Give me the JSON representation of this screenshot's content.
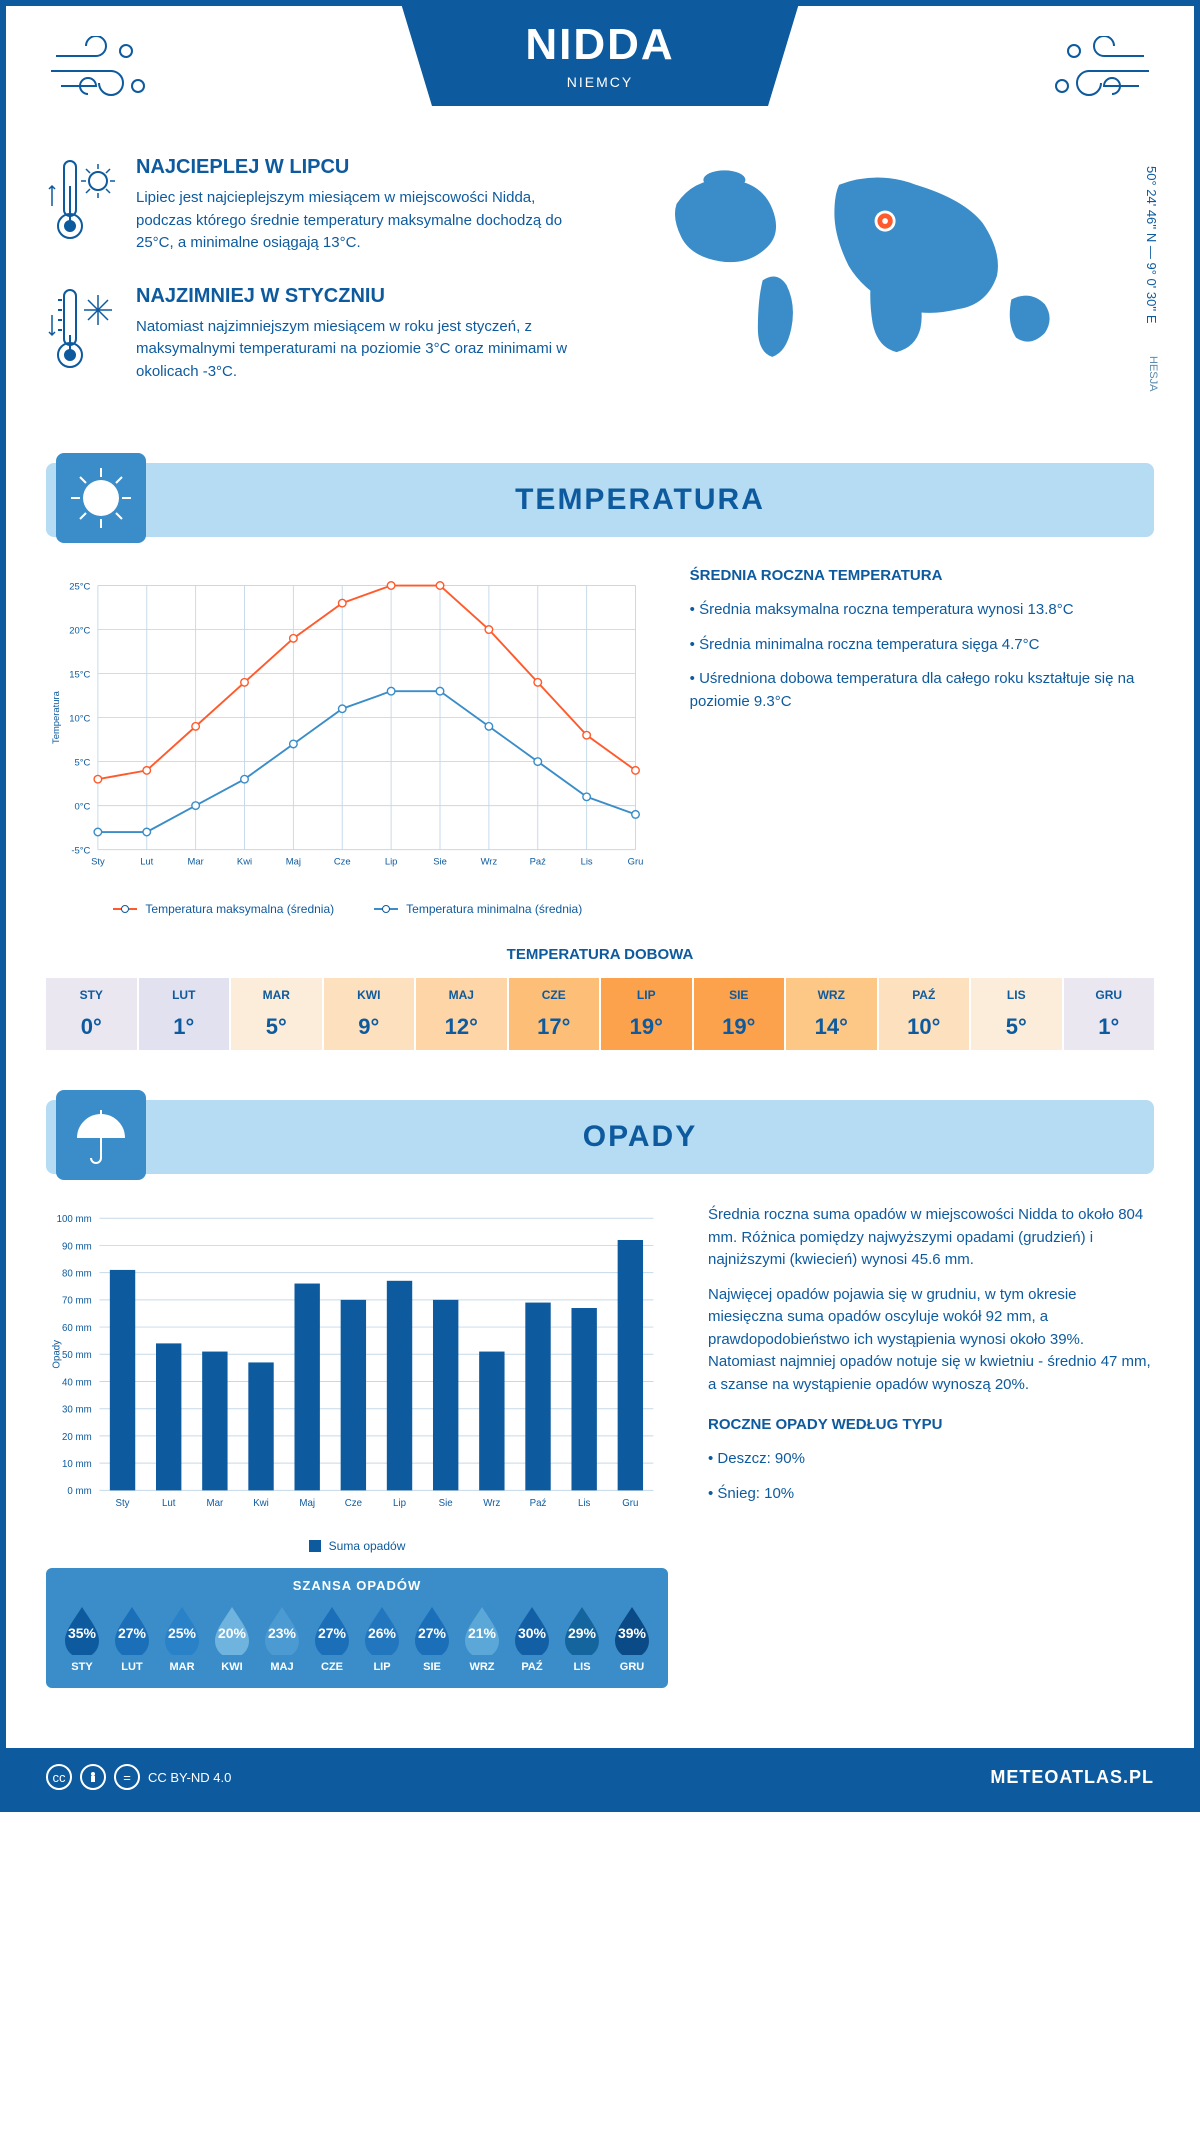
{
  "header": {
    "title": "NIDDA",
    "country": "NIEMCY",
    "coords": "50° 24' 46'' N — 9° 0' 30'' E",
    "region": "HESJA"
  },
  "warmest": {
    "title": "NAJCIEPLEJ W LIPCU",
    "text": "Lipiec jest najcieplejszym miesiącem w miejscowości Nidda, podczas którego średnie temperatury maksymalne dochodzą do 25°C, a minimalne osiągają 13°C."
  },
  "coldest": {
    "title": "NAJZIMNIEJ W STYCZNIU",
    "text": "Natomiast najzimniejszym miesiącem w roku jest styczeń, z maksymalnymi temperaturami na poziomie 3°C oraz minimami w okolicach -3°C."
  },
  "temp_section": {
    "title": "TEMPERATURA"
  },
  "temp_chart": {
    "type": "line",
    "xlabels": [
      "Sty",
      "Lut",
      "Mar",
      "Kwi",
      "Maj",
      "Cze",
      "Lip",
      "Sie",
      "Wrz",
      "Paź",
      "Lis",
      "Gru"
    ],
    "ylabel": "Temperatura",
    "ylim": [
      -5,
      25
    ],
    "ytick_step": 5,
    "yticks": [
      "-5°C",
      "0°C",
      "5°C",
      "10°C",
      "15°C",
      "20°C",
      "25°C"
    ],
    "series": [
      {
        "name": "max",
        "label": "Temperatura maksymalna (średnia)",
        "color": "#ff5a2c",
        "values": [
          3,
          4,
          9,
          14,
          19,
          23,
          25,
          25,
          20,
          14,
          8,
          4
        ]
      },
      {
        "name": "min",
        "label": "Temperatura minimalna (średnia)",
        "color": "#3a8dc8",
        "values": [
          -3,
          -3,
          0,
          3,
          7,
          11,
          13,
          13,
          9,
          5,
          1,
          -1
        ]
      }
    ],
    "grid_color": "#c5d9e8",
    "background": "#ffffff",
    "line_width": 2,
    "marker": "circle",
    "marker_size": 4,
    "label_fontsize": 10
  },
  "temp_desc": {
    "heading": "ŚREDNIA ROCZNA TEMPERATURA",
    "b1": "• Średnia maksymalna roczna temperatura wynosi 13.8°C",
    "b2": "• Średnia minimalna roczna temperatura sięga 4.7°C",
    "b3": "• Uśredniona dobowa temperatura dla całego roku kształtuje się na poziomie 9.3°C"
  },
  "daily": {
    "title": "TEMPERATURA DOBOWA",
    "months": [
      "STY",
      "LUT",
      "MAR",
      "KWI",
      "MAJ",
      "CZE",
      "LIP",
      "SIE",
      "WRZ",
      "PAŹ",
      "LIS",
      "GRU"
    ],
    "values": [
      "0°",
      "1°",
      "5°",
      "9°",
      "12°",
      "17°",
      "19°",
      "19°",
      "14°",
      "10°",
      "5°",
      "1°"
    ],
    "colors": [
      "#eae7f1",
      "#e2e1ef",
      "#fbedd9",
      "#fde1bf",
      "#fdd5a6",
      "#fdbf78",
      "#fca24d",
      "#fca24d",
      "#fdc886",
      "#fde1bf",
      "#fbedd9",
      "#eae7f1"
    ]
  },
  "rain_section": {
    "title": "OPADY"
  },
  "rain_chart": {
    "type": "bar",
    "xlabels": [
      "Sty",
      "Lut",
      "Mar",
      "Kwi",
      "Maj",
      "Cze",
      "Lip",
      "Sie",
      "Wrz",
      "Paź",
      "Lis",
      "Gru"
    ],
    "ylabel": "Opady",
    "values": [
      81,
      54,
      51,
      47,
      76,
      70,
      77,
      70,
      51,
      69,
      67,
      92
    ],
    "ylim": [
      0,
      100
    ],
    "ytick_step": 10,
    "bar_color": "#0d5a9e",
    "grid_color": "#c5d9e8",
    "bar_width": 0.55,
    "legend_label": "Suma opadów",
    "label_fontsize": 10
  },
  "rain_desc": {
    "p1": "Średnia roczna suma opadów w miejscowości Nidda to około 804 mm. Różnica pomiędzy najwyższymi opadami (grudzień) i najniższymi (kwiecień) wynosi 45.6 mm.",
    "p2": "Najwięcej opadów pojawia się w grudniu, w tym okresie miesięczna suma opadów oscyluje wokół 92 mm, a prawdopodobieństwo ich wystąpienia wynosi około 39%. Natomiast najmniej opadów notuje się w kwietniu - średnio 47 mm, a szanse na wystąpienie opadów wynoszą 20%.",
    "type_heading": "ROCZNE OPADY WEDŁUG TYPU",
    "b1": "• Deszcz: 90%",
    "b2": "• Śnieg: 10%"
  },
  "chance": {
    "title": "SZANSA OPADÓW",
    "months": [
      "STY",
      "LUT",
      "MAR",
      "KWI",
      "MAJ",
      "CZE",
      "LIP",
      "SIE",
      "WRZ",
      "PAŹ",
      "LIS",
      "GRU"
    ],
    "values": [
      "35%",
      "27%",
      "25%",
      "20%",
      "23%",
      "27%",
      "26%",
      "27%",
      "21%",
      "30%",
      "29%",
      "39%"
    ],
    "colors": [
      "#0d5a9e",
      "#1a6fb8",
      "#2981c8",
      "#6fb4de",
      "#4b9ad2",
      "#1a6fb8",
      "#2176be",
      "#1a6fb8",
      "#5ba8d8",
      "#135fa6",
      "#14659e",
      "#0a4a87"
    ]
  },
  "footer": {
    "license": "CC BY-ND 4.0",
    "site": "METEOATLAS.PL"
  },
  "colors": {
    "primary": "#0d5a9e",
    "light": "#b5dcf2",
    "mid": "#3a8dc8",
    "orange": "#ff5a2c"
  }
}
